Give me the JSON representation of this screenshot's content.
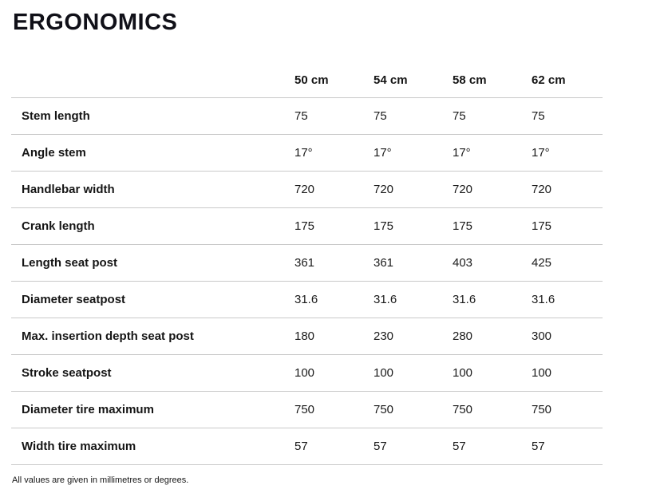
{
  "page": {
    "title": "ERGONOMICS",
    "footnote": "All values are given in millimetres or degrees."
  },
  "table": {
    "columns": [
      "50 cm",
      "54 cm",
      "58 cm",
      "62 cm"
    ],
    "rows": [
      {
        "label": "Stem length",
        "values": [
          "75",
          "75",
          "75",
          "75"
        ]
      },
      {
        "label": "Angle stem",
        "values": [
          "17°",
          "17°",
          "17°",
          "17°"
        ]
      },
      {
        "label": "Handlebar width",
        "values": [
          "720",
          "720",
          "720",
          "720"
        ]
      },
      {
        "label": "Crank length",
        "values": [
          "175",
          "175",
          "175",
          "175"
        ]
      },
      {
        "label": "Length seat post",
        "values": [
          "361",
          "361",
          "403",
          "425"
        ]
      },
      {
        "label": "Diameter seatpost",
        "values": [
          "31.6",
          "31.6",
          "31.6",
          "31.6"
        ]
      },
      {
        "label": "Max. insertion depth seat post",
        "values": [
          "180",
          "230",
          "280",
          "300"
        ]
      },
      {
        "label": "Stroke seatpost",
        "values": [
          "100",
          "100",
          "100",
          "100"
        ]
      },
      {
        "label": "Diameter tire maximum",
        "values": [
          "750",
          "750",
          "750",
          "750"
        ]
      },
      {
        "label": "Width tire maximum",
        "values": [
          "57",
          "57",
          "57",
          "57"
        ]
      }
    ]
  },
  "colors": {
    "text": "#151515",
    "divider": "#c9c9c9",
    "background": "#ffffff"
  }
}
